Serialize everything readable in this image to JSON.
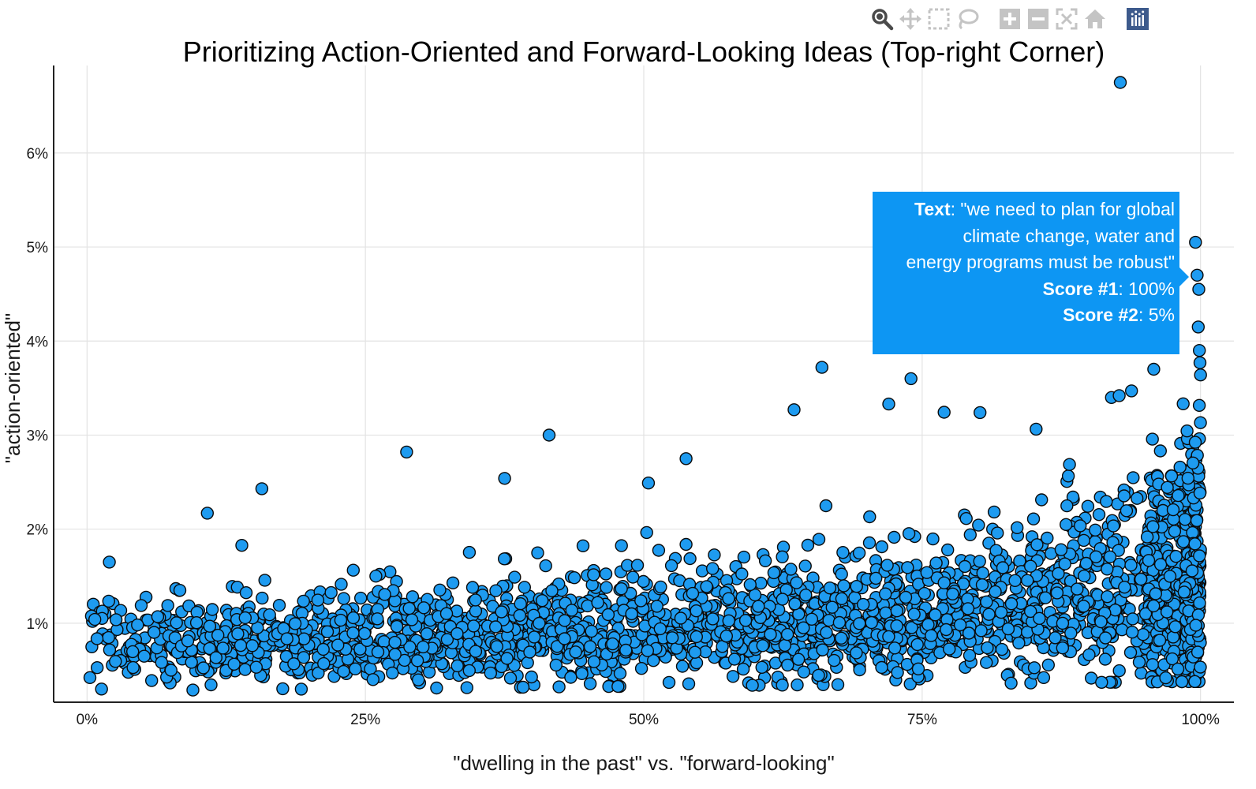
{
  "colors": {
    "marker_fill": "#1e9bf0",
    "marker_stroke": "#0a0a0a",
    "tooltip_bg": "#0d96f3",
    "grid": "#e3e3e3",
    "modebar_icon": "#c4c4c4",
    "modebar_logo": "#3d5a8c"
  },
  "modebar": {
    "buttons": [
      {
        "icon": "zoom-icon",
        "active": true
      },
      {
        "icon": "pan-icon"
      },
      {
        "icon": "box-select-icon"
      },
      {
        "icon": "lasso-select-icon"
      },
      {
        "icon": "zoom-in-icon"
      },
      {
        "icon": "zoom-out-icon"
      },
      {
        "icon": "autoscale-icon"
      },
      {
        "icon": "reset-axes-icon"
      },
      {
        "icon": "plotly-logo-icon"
      }
    ]
  },
  "tooltip": {
    "text_label": "Text",
    "text_lines": [
      "\"we need to plan for global",
      "climate change, water and",
      "energy programs must be robust\""
    ],
    "score1_label": "Score #1",
    "score1_value": "100%",
    "score2_label": "Score #2",
    "score2_value": "5%"
  },
  "chart_data": {
    "type": "scatter",
    "title": "Prioritizing Action-Oriented and Forward-Looking Ideas (Top-right Corner)",
    "xlabel": "\"dwelling in the past\" vs. \"forward-looking\"",
    "ylabel": "\"action-oriented\"",
    "xlim": [
      -0.03,
      1.03
    ],
    "ylim": [
      0.0016,
      0.0693
    ],
    "xticks": [
      0,
      0.25,
      0.5,
      0.75,
      1.0
    ],
    "xtick_labels": [
      "0%",
      "25%",
      "50%",
      "75%",
      "100%"
    ],
    "yticks": [
      0.01,
      0.02,
      0.03,
      0.04,
      0.05,
      0.06
    ],
    "ytick_labels": [
      "1%",
      "2%",
      "3%",
      "4%",
      "5%",
      "6%"
    ],
    "grid": true,
    "marker": "circle",
    "point_count_estimate": 2600,
    "points_described": "dense cloud; y mostly between 0.3% and 2%, rising toward x = 100%",
    "notable_points": [
      {
        "x": 0.928,
        "y": 0.0675
      },
      {
        "x": 0.9955,
        "y": 0.0505
      },
      {
        "x": 0.997,
        "y": 0.047
      },
      {
        "x": 0.9985,
        "y": 0.0455
      },
      {
        "x": 0.998,
        "y": 0.0415
      },
      {
        "x": 0.999,
        "y": 0.039
      },
      {
        "x": 0.9995,
        "y": 0.0377
      },
      {
        "x": 1.0,
        "y": 0.0364
      },
      {
        "x": 0.66,
        "y": 0.0372
      },
      {
        "x": 0.74,
        "y": 0.036
      },
      {
        "x": 0.958,
        "y": 0.037
      },
      {
        "x": 0.938,
        "y": 0.0347
      },
      {
        "x": 0.92,
        "y": 0.034
      },
      {
        "x": 0.927,
        "y": 0.0342
      },
      {
        "x": 0.72,
        "y": 0.0333
      },
      {
        "x": 0.635,
        "y": 0.0327
      },
      {
        "x": 0.802,
        "y": 0.0324
      },
      {
        "x": 0.415,
        "y": 0.03
      },
      {
        "x": 0.287,
        "y": 0.0282
      },
      {
        "x": 0.538,
        "y": 0.0275
      },
      {
        "x": 0.375,
        "y": 0.0254
      },
      {
        "x": 0.157,
        "y": 0.0243
      },
      {
        "x": 0.108,
        "y": 0.0217
      },
      {
        "x": 0.02,
        "y": 0.0165
      },
      {
        "x": 0.007,
        "y": 0.0104
      },
      {
        "x": 0.013,
        "y": 0.003
      }
    ],
    "density_bands": [
      {
        "x_range": [
          0.0,
          0.2
        ],
        "y_range": [
          0.003,
          0.0145
        ]
      },
      {
        "x_range": [
          0.2,
          0.4
        ],
        "y_range": [
          0.0035,
          0.0165
        ]
      },
      {
        "x_range": [
          0.4,
          0.6
        ],
        "y_range": [
          0.004,
          0.018
        ]
      },
      {
        "x_range": [
          0.6,
          0.8
        ],
        "y_range": [
          0.004,
          0.02
        ]
      },
      {
        "x_range": [
          0.8,
          0.95
        ],
        "y_range": [
          0.004,
          0.025
        ]
      },
      {
        "x_range": [
          0.95,
          1.0
        ],
        "y_range": [
          0.007,
          0.032
        ]
      }
    ]
  }
}
